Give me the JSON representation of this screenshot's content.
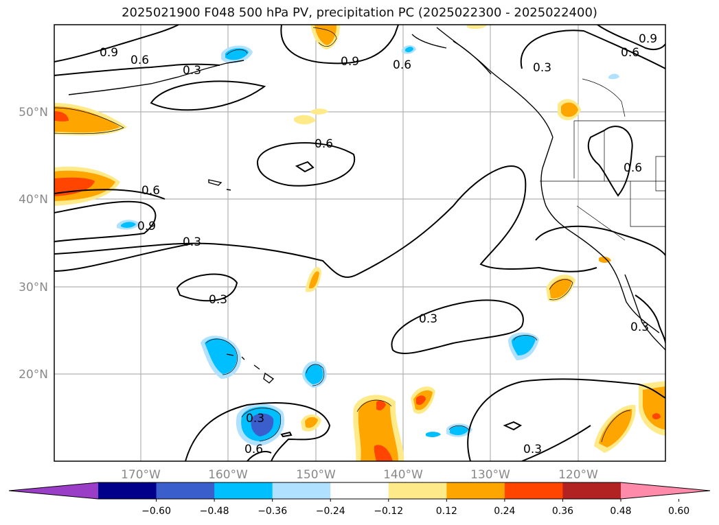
{
  "title": "2025021900 F048 500 hPa PV, precipitation PC (2025022300 - 2025022400)",
  "map": {
    "lon_ticks": [
      "170°W",
      "160°W",
      "150°W",
      "140°W",
      "130°W",
      "120°W"
    ],
    "lat_ticks": [
      "50°N",
      "40°N",
      "30°N",
      "20°N"
    ],
    "contour_labels": [
      "0.9",
      "0.6",
      "0.3"
    ],
    "colorbar": {
      "ticks": [
        "−0.60",
        "−0.48",
        "−0.36",
        "−0.24",
        "−0.12",
        "0.12",
        "0.24",
        "0.36",
        "0.48",
        "0.60"
      ],
      "colors": [
        "#9a3ec8",
        "#00008b",
        "#3a5fcd",
        "#00bfff",
        "#b0e2ff",
        "#ffffff",
        "#ffea8a",
        "#ffa500",
        "#ff4500",
        "#b22222",
        "#ff8aaa"
      ]
    }
  }
}
